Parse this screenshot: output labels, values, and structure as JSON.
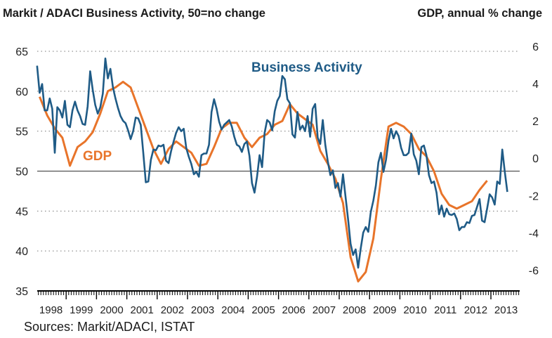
{
  "header": {
    "left_title": "Markit / ADACI  Business Activity, 50=no change",
    "right_title": "GDP, annual % change"
  },
  "source": "Sources: Markit/ADACI, ISTAT",
  "chart_data": {
    "type": "line",
    "x_start": "1998-01",
    "x_frequency": "monthly",
    "x_tick_labels": [
      "1998",
      "1999",
      "2000",
      "2001",
      "2002",
      "2003",
      "2004",
      "2005",
      "2006",
      "2007",
      "2008",
      "2009",
      "2010",
      "2011",
      "2012",
      "2013"
    ],
    "left_axis": {
      "ylim": [
        35,
        65
      ],
      "ticks": [
        35,
        40,
        45,
        50,
        55,
        60,
        65
      ]
    },
    "right_axis": {
      "ylim": [
        -7,
        6
      ],
      "ticks": [
        -6,
        -4,
        -2,
        0,
        2,
        4,
        6
      ]
    },
    "reference_line": {
      "axis": "left",
      "value": 50
    },
    "grid": "horizontal dotted",
    "series": [
      {
        "name": "Business Activity",
        "axis": "left",
        "color": "#1f5b86",
        "frequency": "monthly",
        "values": [
          63.2,
          59.8,
          60.9,
          57.6,
          57.6,
          59.1,
          57.8,
          52.3,
          58.0,
          57.6,
          56.7,
          58.8,
          55.8,
          55.5,
          57.6,
          58.7,
          57.6,
          56.9,
          55.9,
          55.8,
          58.1,
          62.5,
          60.2,
          58.3,
          57.2,
          58.0,
          59.7,
          64.1,
          61.6,
          62.8,
          60.5,
          59.1,
          57.9,
          56.9,
          56.3,
          56.0,
          55.1,
          54.0,
          55.0,
          56.7,
          56.6,
          55.8,
          52.3,
          48.6,
          48.7,
          51.4,
          52.7,
          52.6,
          53.2,
          53.1,
          53.3,
          51.3,
          51.0,
          52.5,
          53.7,
          54.8,
          55.5,
          55.0,
          55.3,
          52.9,
          51.8,
          50.9,
          49.6,
          49.9,
          49.3,
          52.0,
          52.2,
          52.2,
          53.3,
          57.4,
          59.0,
          57.8,
          56.2,
          55.2,
          55.8,
          56.1,
          56.4,
          55.6,
          54.3,
          53.3,
          53.1,
          52.4,
          53.4,
          53.7,
          51.9,
          48.5,
          47.3,
          49.3,
          52.0,
          50.5,
          54.8,
          56.4,
          56.1,
          55.1,
          57.5,
          58.8,
          59.4,
          61.9,
          61.5,
          59.0,
          58.5,
          54.6,
          54.2,
          57.4,
          55.2,
          55.7,
          55.0,
          56.9,
          54.3,
          57.8,
          58.4,
          54.2,
          53.4,
          56.4,
          53.3,
          51.2,
          49.5,
          50.1,
          47.9,
          48.5,
          46.8,
          49.6,
          46.8,
          44.0,
          40.9,
          39.5,
          40.2,
          37.9,
          40.3,
          42.3,
          43.0,
          42.4,
          44.9,
          46.3,
          48.2,
          51.1,
          52.3,
          49.9,
          51.4,
          53.8,
          55.3,
          54.1,
          55.0,
          54.4,
          52.9,
          52.0,
          52.0,
          52.3,
          54.7,
          52.1,
          51.3,
          49.6,
          53.0,
          53.2,
          52.0,
          49.5,
          48.5,
          48.7,
          47.3,
          44.6,
          45.7,
          44.3,
          45.3,
          44.6,
          44.5,
          44.7,
          44.0,
          42.6,
          43.0,
          43.0,
          43.6,
          43.5,
          44.4,
          44.5,
          45.5,
          46.5,
          43.8,
          43.6,
          45.3,
          47.1,
          46.7,
          45.8,
          48.7,
          48.4,
          52.7,
          49.9,
          47.4
        ]
      },
      {
        "name": "GDP",
        "axis": "right",
        "color": "#e8742a",
        "frequency": "quarterly",
        "values": [
          3.3,
          2.3,
          1.6,
          1.1,
          -0.4,
          0.6,
          0.9,
          1.4,
          2.4,
          3.6,
          3.8,
          4.1,
          3.8,
          2.7,
          1.6,
          0.5,
          -0.3,
          0.5,
          0.9,
          0.6,
          0.3,
          -0.4,
          -0.3,
          0.6,
          1.6,
          1.9,
          1.9,
          1.1,
          0.6,
          1.1,
          1.3,
          1.8,
          2.0,
          2.9,
          2.4,
          2.1,
          1.8,
          0.4,
          -0.3,
          -1.1,
          -2.4,
          -5.3,
          -6.6,
          -6.1,
          -4.3,
          -1.1,
          1.7,
          1.9,
          1.7,
          1.3,
          0.5,
          0.1,
          -0.7,
          -1.9,
          -2.5,
          -2.7,
          -2.5,
          -2.3,
          -1.7,
          -1.2
        ]
      }
    ],
    "annotations": [
      "Business Activity",
      "GDP"
    ]
  }
}
